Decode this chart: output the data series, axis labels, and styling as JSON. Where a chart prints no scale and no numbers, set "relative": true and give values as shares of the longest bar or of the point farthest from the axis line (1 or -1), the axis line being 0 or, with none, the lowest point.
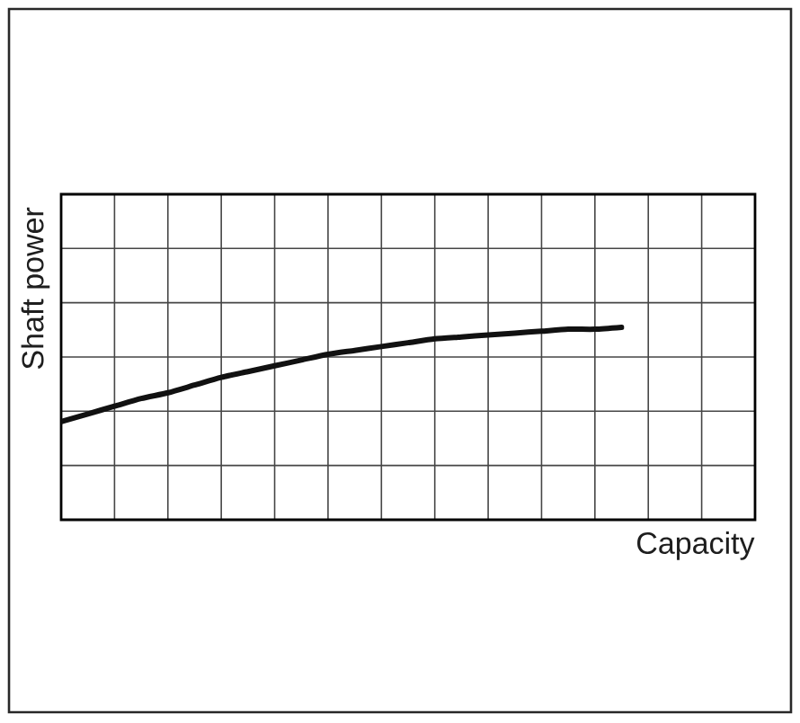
{
  "chart_data": {
    "type": "line",
    "xlabel": "Capacity",
    "ylabel": "Shaft power",
    "relative": true,
    "grid": true,
    "categories": [
      null,
      null,
      null,
      null,
      null,
      null,
      null,
      null,
      null,
      null,
      null,
      null,
      null,
      null,
      null,
      null,
      null,
      null,
      null,
      null,
      null,
      null,
      null,
      null,
      null,
      null,
      null
    ],
    "values": [
      0.51,
      0.55,
      0.59,
      0.63,
      0.66,
      0.7,
      0.74,
      0.77,
      0.8,
      0.83,
      0.86,
      0.88,
      0.9,
      0.92,
      0.94,
      0.95,
      0.96,
      0.97,
      0.98,
      0.99,
      0.99,
      1,
      null,
      null,
      null,
      null,
      null
    ],
    "color": "#111111"
  }
}
